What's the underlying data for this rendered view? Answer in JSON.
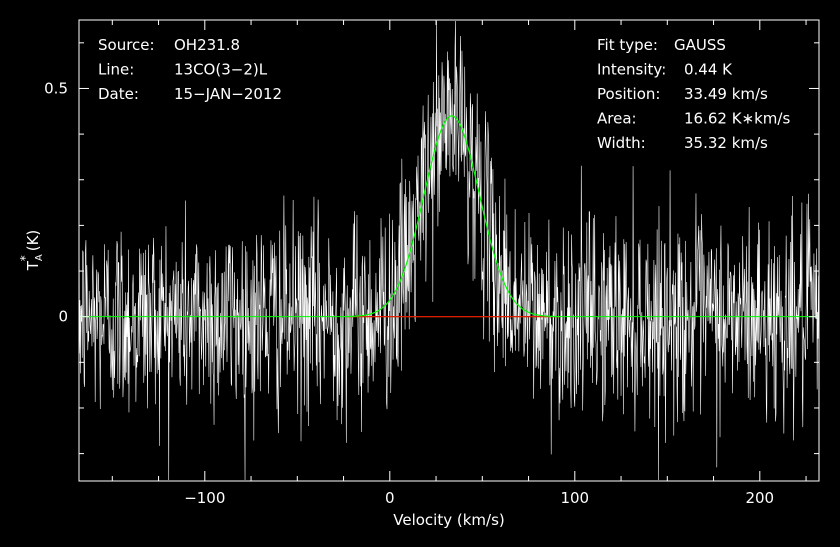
{
  "chart_data": {
    "type": "line",
    "xlabel": "Velocity (km/s)",
    "ylabel_main": "T",
    "ylabel_sub": "A",
    "ylabel_sup": "*",
    "ylabel_unit": "(K)",
    "xlim": [
      -168,
      232
    ],
    "ylim": [
      -0.36,
      0.65
    ],
    "x_ticks": [
      -100,
      0,
      100,
      200
    ],
    "x_tick_labels": [
      "−100",
      "0",
      "100",
      "200"
    ],
    "y_ticks": [
      0,
      0.5
    ],
    "y_tick_labels": [
      "0",
      "0.5"
    ],
    "grid": false,
    "info_left": [
      {
        "label": "Source:",
        "value": "OH231.8"
      },
      {
        "label": "Line:",
        "value": "13CO(3−2)L"
      },
      {
        "label": "Date:",
        "value": "15−JAN−2012"
      }
    ],
    "info_right": [
      {
        "label": "Fit type:",
        "value": "GAUSS"
      },
      {
        "label": "Intensity:",
        "value": "0.44 K"
      },
      {
        "label": "Position:",
        "value": "33.49 km/s"
      },
      {
        "label": "Area:",
        "value": "16.62 K∗km/s"
      },
      {
        "label": "Width:",
        "value": "35.32 km/s"
      }
    ],
    "series": [
      {
        "kind": "spectrum",
        "color": "#ffffff",
        "noise_rms": 0.11,
        "channel_spacing": 0.25
      },
      {
        "kind": "gaussian_fit",
        "color": "#00ff00",
        "amplitude": 0.44,
        "center": 33.49,
        "fwhm": 35.32
      },
      {
        "kind": "baseline",
        "color": "#ff0000",
        "x_range": [
          -24,
          92
        ],
        "y": 0
      }
    ],
    "zero_line_color": "#00ff00"
  }
}
